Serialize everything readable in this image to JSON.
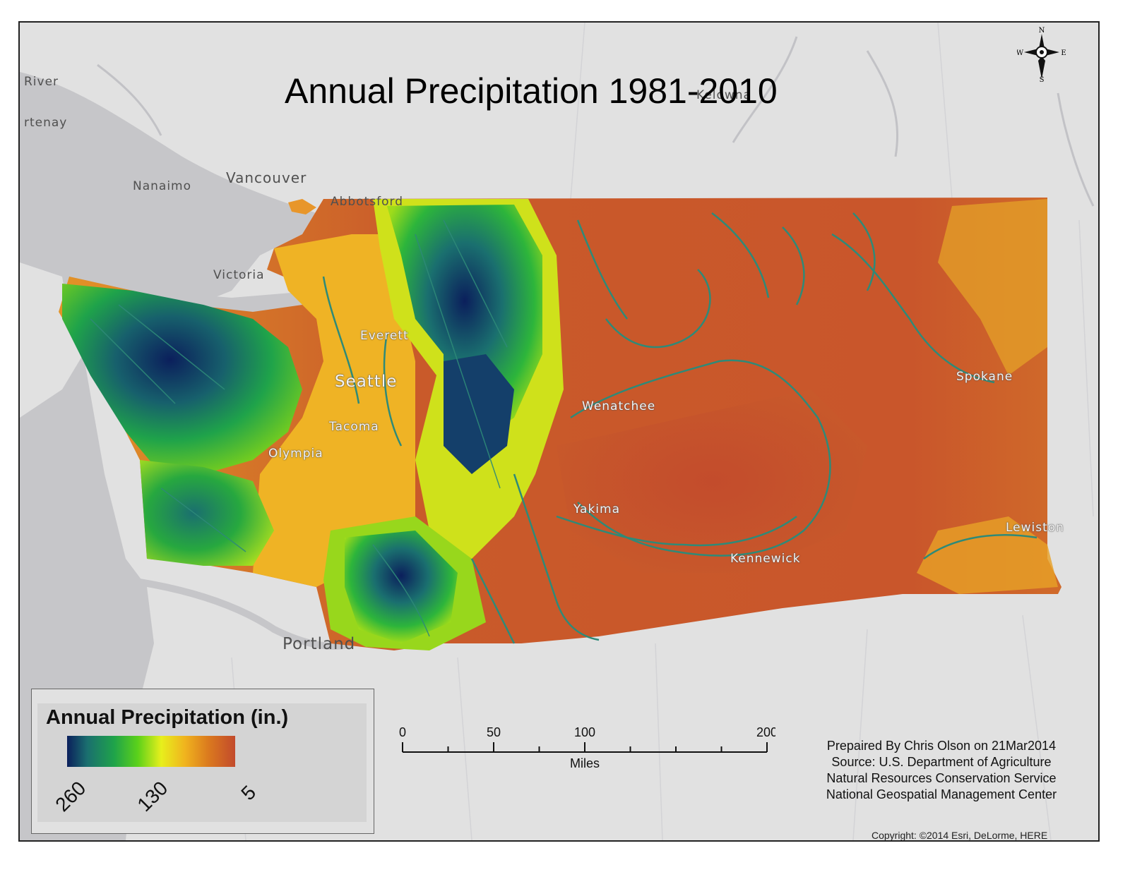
{
  "title": "Annual Precipitation 1981-2010",
  "place_labels": {
    "river": "River",
    "courtenay": "rtenay",
    "nanaimo": "Nanaimo",
    "vancouver": "Vancouver",
    "kelowna": "Kelowna",
    "abbotsford": "Abbotsford",
    "victoria": "Victoria",
    "everett": "Everett",
    "seattle": "Seattle",
    "tacoma": "Tacoma",
    "olympia": "Olympia",
    "wenatchee": "Wenatchee",
    "yakima": "Yakima",
    "kennewick": "Kennewick",
    "spokane": "Spokane",
    "lewiston": "Lewiston",
    "portland": "Portland"
  },
  "compass": {
    "n": "N",
    "s": "S",
    "e": "E",
    "w": "W"
  },
  "legend": {
    "title": "Annual Precipitation (in.)",
    "ramp_labels": [
      "260",
      "130",
      "5"
    ],
    "ramp_colors": [
      "#0b1f5c",
      "#1a6f6f",
      "#1fa34a",
      "#5bd11a",
      "#e7ef1c",
      "#f0b41e",
      "#db7a1e",
      "#c24a2c"
    ]
  },
  "scale_bar": {
    "ticks": [
      "0",
      "50",
      "100",
      "200"
    ],
    "unit": "Miles"
  },
  "credits": [
    "Prepaired By Chris Olson on 21Mar2014",
    "Source: U.S. Department of Agriculture",
    "Natural Resources Conservation Service",
    "National Geospatial Management Center"
  ],
  "copyright": "Copyright: ©2014 Esri, DeLorme, HERE",
  "colors": {
    "basemap_land": "#e1e1e1",
    "water": "#c3c3c6",
    "wet": "#0b1f5c",
    "dry": "#c24a2c",
    "contour": "#2e8a78"
  }
}
